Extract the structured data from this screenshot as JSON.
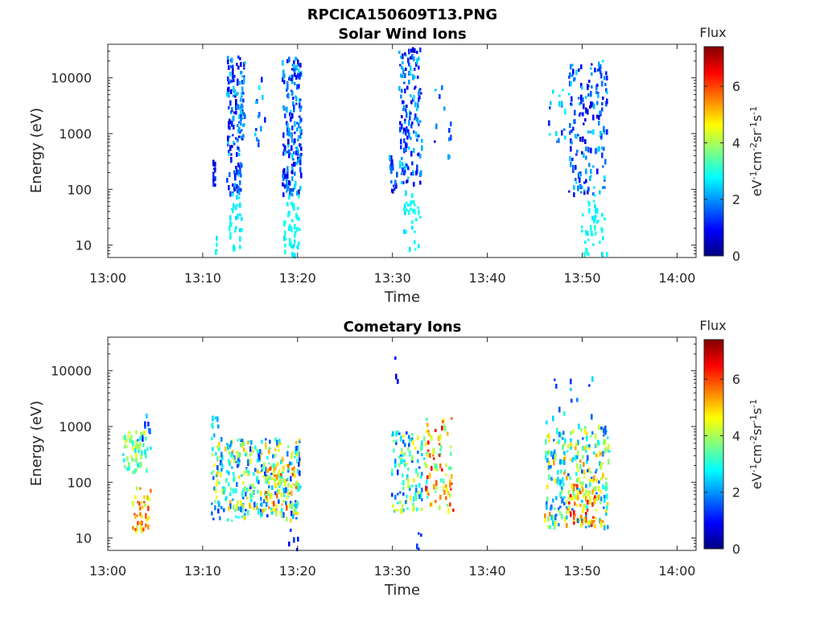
{
  "file_title": "RPCICA150609T13.PNG",
  "chart_data": [
    {
      "type": "heatmap",
      "title": "Solar Wind Ions",
      "xlabel": "Time",
      "ylabel": "Energy (eV)",
      "xlim": [
        "13:00",
        "14:02"
      ],
      "ylim": [
        6,
        40000
      ],
      "yscale": "log",
      "xticks": [
        "13:00",
        "13:10",
        "13:20",
        "13:30",
        "13:40",
        "13:50",
        "14:00"
      ],
      "yticks": [
        "10",
        "100",
        "1000",
        "10000"
      ],
      "colorbar": {
        "label": "Flux",
        "unit_label": "eV-1cm-2sr-1s-1",
        "range": [
          0,
          7.4
        ],
        "ticks": [
          "0",
          "2",
          "4",
          "6"
        ],
        "colormap": "jet"
      },
      "clusters": [
        {
          "t": [
            13.95,
            14.3
          ],
          "e": [
            700,
            22000
          ],
          "v": [
            0.7,
            2.4
          ],
          "n": 28
        },
        {
          "t": [
            11.0,
            11.2
          ],
          "e": [
            120,
            400
          ],
          "v": [
            0.5,
            1.5
          ],
          "n": 14
        },
        {
          "t": [
            11.1,
            11.4
          ],
          "e": [
            6,
            14
          ],
          "v": [
            2.6,
            3.0
          ],
          "n": 5
        },
        {
          "t": [
            12.5,
            14.0
          ],
          "e": [
            80,
            26000
          ],
          "v": [
            0.5,
            2.6
          ],
          "n": 140
        },
        {
          "t": [
            12.5,
            14.0
          ],
          "e": [
            8,
            80
          ],
          "v": [
            2.5,
            3.0
          ],
          "n": 30
        },
        {
          "t": [
            15.3,
            16.6
          ],
          "e": [
            600,
            14000
          ],
          "v": [
            0.8,
            2.8
          ],
          "n": 14
        },
        {
          "t": [
            18.3,
            20.3
          ],
          "e": [
            80,
            22000
          ],
          "v": [
            0.5,
            2.6
          ],
          "n": 180
        },
        {
          "t": [
            18.5,
            20.1
          ],
          "e": [
            6,
            80
          ],
          "v": [
            2.5,
            3.0
          ],
          "n": 45
        },
        {
          "t": [
            29.6,
            30.4
          ],
          "e": [
            90,
            400
          ],
          "v": [
            0.5,
            2.4
          ],
          "n": 22
        },
        {
          "t": [
            30.6,
            33.0
          ],
          "e": [
            120,
            32000
          ],
          "v": [
            0.5,
            2.6
          ],
          "n": 150
        },
        {
          "t": [
            31.0,
            32.8
          ],
          "e": [
            7,
            90
          ],
          "v": [
            2.5,
            3.0
          ],
          "n": 30
        },
        {
          "t": [
            34.2,
            36.5
          ],
          "e": [
            300,
            11000
          ],
          "v": [
            0.8,
            2.8
          ],
          "n": 12
        },
        {
          "t": [
            46.2,
            48.5
          ],
          "e": [
            600,
            7000
          ],
          "v": [
            0.8,
            2.8
          ],
          "n": 20
        },
        {
          "t": [
            48.5,
            52.5
          ],
          "e": [
            80,
            20000
          ],
          "v": [
            0.5,
            2.6
          ],
          "n": 170
        },
        {
          "t": [
            49.8,
            52.5
          ],
          "e": [
            6,
            80
          ],
          "v": [
            2.5,
            3.0
          ],
          "n": 40
        }
      ]
    },
    {
      "type": "heatmap",
      "title": "Cometary Ions",
      "xlabel": "Time",
      "ylabel": "Energy (eV)",
      "xlim": [
        "13:00",
        "14:02"
      ],
      "ylim": [
        6,
        40000
      ],
      "yscale": "log",
      "xticks": [
        "13:00",
        "13:10",
        "13:20",
        "13:30",
        "13:40",
        "13:50",
        "14:00"
      ],
      "yticks": [
        "10",
        "100",
        "1000",
        "10000"
      ],
      "colorbar": {
        "label": "Flux",
        "unit_label": "eV-1cm-2sr-1s-1",
        "range": [
          0,
          7.4
        ],
        "ticks": [
          "0",
          "2",
          "4",
          "6"
        ],
        "colormap": "jet"
      },
      "clusters": [
        {
          "t": [
            1.5,
            4.2
          ],
          "e": [
            150,
            800
          ],
          "v": [
            2.5,
            4.5
          ],
          "n": 60
        },
        {
          "t": [
            2.5,
            4.4
          ],
          "e": [
            12,
            80
          ],
          "v": [
            4.0,
            6.4
          ],
          "n": 40
        },
        {
          "t": [
            3.0,
            4.5
          ],
          "e": [
            400,
            1600
          ],
          "v": [
            1.0,
            2.8
          ],
          "n": 10
        },
        {
          "t": [
            10.8,
            11.6
          ],
          "e": [
            500,
            2500
          ],
          "v": [
            2.0,
            3.2
          ],
          "n": 10
        },
        {
          "t": [
            10.8,
            20.3
          ],
          "e": [
            20,
            600
          ],
          "v": [
            1.2,
            5.2
          ],
          "n": 360
        },
        {
          "t": [
            15.8,
            19.8
          ],
          "e": [
            30,
            200
          ],
          "v": [
            3.8,
            6.0
          ],
          "n": 60
        },
        {
          "t": [
            18.8,
            20.3
          ],
          "e": [
            6,
            14
          ],
          "v": [
            0.8,
            1.4
          ],
          "n": 6
        },
        {
          "t": [
            30.0,
            31.2
          ],
          "e": [
            5000,
            32000
          ],
          "v": [
            0.7,
            1.6
          ],
          "n": 3
        },
        {
          "t": [
            29.8,
            33.5
          ],
          "e": [
            30,
            800
          ],
          "v": [
            1.2,
            4.8
          ],
          "n": 120
        },
        {
          "t": [
            33.4,
            36.3
          ],
          "e": [
            30,
            1400
          ],
          "v": [
            3.0,
            6.6
          ],
          "n": 80
        },
        {
          "t": [
            32.1,
            33.2
          ],
          "e": [
            6,
            13
          ],
          "v": [
            0.8,
            1.4
          ],
          "n": 4
        },
        {
          "t": [
            46.0,
            52.8
          ],
          "e": [
            15,
            1000
          ],
          "v": [
            1.5,
            5.5
          ],
          "n": 280
        },
        {
          "t": [
            48.3,
            51.3
          ],
          "e": [
            15,
            90
          ],
          "v": [
            4.0,
            6.6
          ],
          "n": 50
        },
        {
          "t": [
            46.0,
            51.5
          ],
          "e": [
            1000,
            15000
          ],
          "v": [
            1.0,
            3.2
          ],
          "n": 14
        }
      ]
    }
  ]
}
